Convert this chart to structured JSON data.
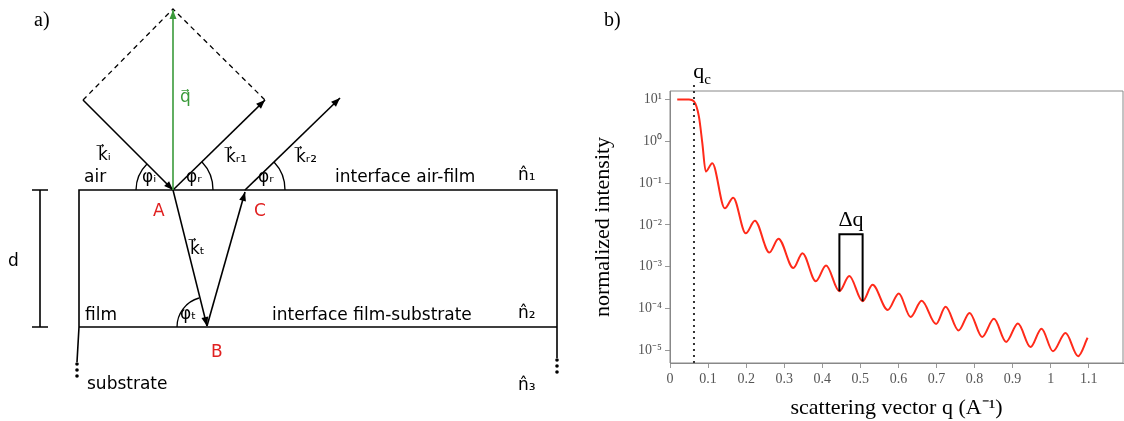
{
  "chart_data": [
    {
      "type": "other",
      "title": "a)",
      "annotations": [
        "q⃗",
        "k⃗ᵢ",
        "k⃗ᵣ₁",
        "k⃗ᵣ₂",
        "air",
        "φᵢ",
        "φᵣ",
        "φᵣ",
        "interface air-film",
        "n̂₁",
        "A",
        "C",
        "k⃗ₜ",
        "d",
        "film",
        "φₜ",
        "interface film-substrate",
        "n̂₂",
        "B",
        "substrate",
        "n̂₃"
      ]
    },
    {
      "type": "line",
      "title": "b)",
      "xlabel": "scattering vector q (A⁻¹)",
      "ylabel": "normalized intensity",
      "log": "y",
      "grid": false,
      "legend": false,
      "marker": "none",
      "x": [
        0.019,
        0.05,
        0.063,
        0.076,
        0.085,
        0.094,
        0.111,
        0.144,
        0.166,
        0.199,
        0.223,
        0.261,
        0.285,
        0.324,
        0.348,
        0.383,
        0.41,
        0.445,
        0.471,
        0.506,
        0.532,
        0.572,
        0.601,
        0.632,
        0.661,
        0.699,
        0.724,
        0.758,
        0.787,
        0.82,
        0.851,
        0.883,
        0.914,
        0.947,
        0.976,
        1.006,
        1.039,
        1.072,
        1.097
      ],
      "series": [
        {
          "color": "#ff2a1a",
          "values": [
            10,
            10,
            9,
            3.9,
            0.9,
            0.19,
            0.3,
            0.025,
            0.045,
            0.0063,
            0.0126,
            0.0022,
            0.0047,
            0.00093,
            0.0021,
            0.00045,
            0.00107,
            0.00026,
            0.0006,
            0.00015,
            0.00037,
            9.3e-05,
            0.00023,
            6.3e-05,
            0.000155,
            4.3e-05,
            0.00011,
            3e-05,
            7.9e-05,
            2.1e-05,
            5.7e-05,
            1.6e-05,
            4.4e-05,
            1.2e-05,
            3.3e-05,
            9.5e-06,
            2.6e-05,
            7.3e-06,
            2e-05
          ]
        }
      ],
      "xlim": [
        0,
        1.19
      ],
      "xticks": [
        0,
        0.1,
        0.2,
        0.3,
        0.4,
        0.5,
        0.6,
        0.7,
        0.8,
        0.9,
        1,
        1.1
      ],
      "ylim": [
        5e-06,
        16
      ],
      "yticks": [
        {
          "value": 1e-05,
          "label": "10⁻⁵"
        },
        {
          "value": 0.0001,
          "label": "10⁻⁴"
        },
        {
          "value": 0.001,
          "label": "10⁻³"
        },
        {
          "value": 0.01,
          "label": "10⁻²"
        },
        {
          "value": 0.1,
          "label": "10⁻¹"
        },
        {
          "value": 1,
          "label": "10⁰"
        },
        {
          "value": 10,
          "label": "10¹"
        }
      ],
      "ref_lines": [
        {
          "axis": "x",
          "value": 0.063,
          "label": "q$_{c}$",
          "color": "#333333",
          "line_style": "dotted"
        }
      ],
      "annotations": [
        {
          "text": "Δq",
          "x": 0.445,
          "y": 0.00026
        }
      ]
    }
  ]
}
